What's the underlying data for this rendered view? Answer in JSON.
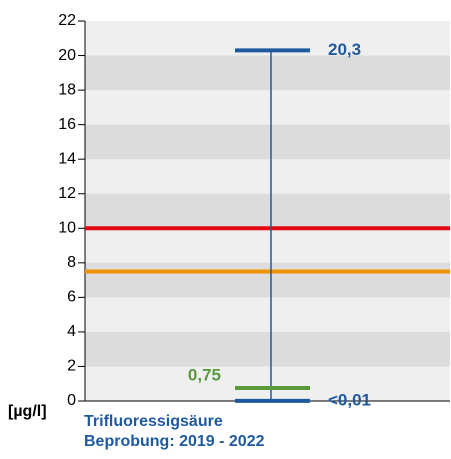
{
  "chart_data": {
    "type": "range",
    "title": "Trifluoressigsäure",
    "subtitle": "Beprobung: 2019 - 2022",
    "y_label": "[µg/l]",
    "ylim": [
      0,
      22
    ],
    "yticks": [
      0,
      2,
      4,
      6,
      8,
      10,
      12,
      14,
      16,
      18,
      20,
      22
    ],
    "background_bands": true,
    "values": [
      20.3,
      0.75,
      0.01
    ],
    "value_labels": [
      "20,3",
      "0,75",
      "<0,01"
    ],
    "colors": [
      "#1f5aa0",
      "#5a9a3c",
      "#1f5aa0"
    ],
    "range_color": "#1f5aa0",
    "reference_lines": {
      "values": [
        10,
        7.5
      ],
      "colors": [
        "#e30613",
        "#f39200"
      ]
    }
  }
}
